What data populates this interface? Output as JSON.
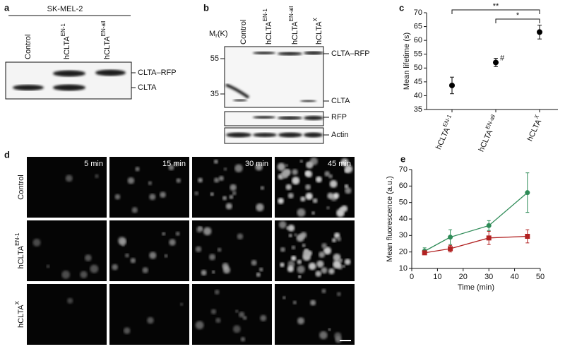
{
  "panel_a": {
    "label": "a",
    "cell_line": "SK-MEL-2",
    "lanes": [
      {
        "text": "Control"
      },
      {
        "text": "hCLTA",
        "sup": "EN-1"
      },
      {
        "text": "hCLTA",
        "sup": "EN-all"
      }
    ],
    "bands": [
      "CLTA–RFP",
      "CLTA"
    ]
  },
  "panel_b": {
    "label": "b",
    "mass_label": {
      "text": "M",
      "sub": "r",
      "unit": "(K)"
    },
    "markers": [
      "55",
      "35"
    ],
    "lanes": [
      {
        "text": "Control"
      },
      {
        "text": "hCLTA",
        "sup": "EN-1"
      },
      {
        "text": "hCLTA",
        "sup": "EN-all"
      },
      {
        "text": "hCLTA",
        "sup": "X"
      }
    ],
    "bands": [
      "CLTA–RFP",
      "CLTA",
      "RFP",
      "Actin"
    ]
  },
  "panel_c": {
    "label": "c"
  },
  "panel_d": {
    "label": "d",
    "times": [
      "5 min",
      "15 min",
      "30 min",
      "45 min"
    ],
    "rows": [
      {
        "text": "Control"
      },
      {
        "text": "hCLTA",
        "sup": "EN-1"
      },
      {
        "text": "hCLTA",
        "sup": "X"
      }
    ]
  },
  "panel_e": {
    "label": "e"
  },
  "chart_data": [
    {
      "type": "errorpoint",
      "y_label": "Mean lifetime (s)",
      "categories": [
        "hCLTA",
        "hCLTA",
        "hCLTA"
      ],
      "category_superscripts": [
        "EN-1",
        "EN-all",
        "X"
      ],
      "values": [
        43.7,
        52,
        63
      ],
      "errors": [
        3,
        1.5,
        2.5
      ],
      "color": "#000000",
      "ylim": [
        35,
        70
      ],
      "yticks": [
        35,
        40,
        45,
        50,
        55,
        60,
        65,
        70
      ],
      "annotations": [
        "**",
        "*",
        "#"
      ]
    },
    {
      "type": "line",
      "x_label": "Time (min)",
      "y_label": "Mean fluorescence (a.u.)",
      "x": [
        5,
        15,
        30,
        45
      ],
      "xlim": [
        0,
        50
      ],
      "xticks": [
        0,
        10,
        20,
        30,
        40,
        50
      ],
      "ylim": [
        10,
        70
      ],
      "yticks": [
        10,
        20,
        30,
        40,
        50,
        60,
        70
      ],
      "series": [
        {
          "color": "#2e8b57",
          "values": [
            20.5,
            29,
            36,
            56
          ],
          "errors": [
            2,
            4.5,
            3,
            12
          ]
        },
        {
          "color": "#b22222",
          "values": [
            19.5,
            22,
            28.5,
            29.5
          ],
          "errors": [
            1,
            2,
            4,
            4
          ]
        }
      ]
    }
  ]
}
